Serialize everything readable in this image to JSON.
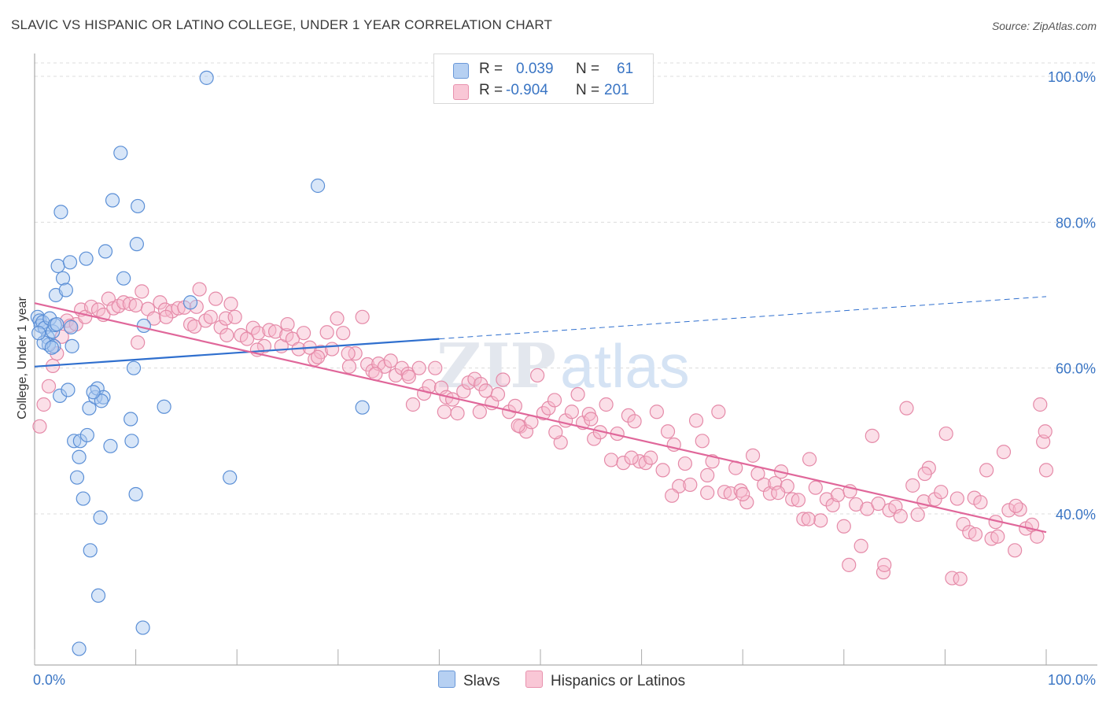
{
  "title": "SLAVIC VS HISPANIC OR LATINO COLLEGE, UNDER 1 YEAR CORRELATION CHART",
  "source": "Source: ZipAtlas.com",
  "watermark": {
    "part1": "ZIP",
    "part2": "atlas"
  },
  "legend": {
    "r_label": "R =",
    "n_label": "N =",
    "rows": [
      {
        "r": "0.039",
        "n": "61"
      },
      {
        "r": "-0.904",
        "n": "201"
      }
    ]
  },
  "colors": {
    "blue_fill": "#a9c8f0",
    "blue_stroke": "#5b8fd6",
    "blue_line": "#2f6fce",
    "pink_fill": "#f7b8cb",
    "pink_stroke": "#e58aa8",
    "pink_line": "#e0679a",
    "axis_label": "#3a75c4"
  },
  "chart_data": {
    "type": "scatter",
    "title": "SLAVIC VS HISPANIC OR LATINO COLLEGE, UNDER 1 YEAR CORRELATION CHART",
    "xlabel": "",
    "ylabel": "College, Under 1 year",
    "x_tick_labels": [
      "0.0%",
      "100.0%"
    ],
    "y_tick_labels": [
      "40.0%",
      "60.0%",
      "80.0%",
      "100.0%"
    ],
    "y_ticks": [
      40,
      60,
      80,
      100
    ],
    "xlim": [
      0,
      100
    ],
    "ylim": [
      19.5,
      102
    ],
    "grid": true,
    "legend_position": "bottom-center",
    "series": [
      {
        "name": "Slavs",
        "r": 0.039,
        "n": 61,
        "trend": {
          "x": [
            0,
            40
          ],
          "y": [
            60.2,
            64.0
          ],
          "dashed_to": [
            100,
            69.8
          ]
        },
        "points": [
          [
            0.3,
            67.0
          ],
          [
            0.5,
            66.5
          ],
          [
            0.6,
            65.8
          ],
          [
            0.8,
            66.3
          ],
          [
            1.0,
            65.5
          ],
          [
            1.3,
            64.2
          ],
          [
            1.4,
            63.2
          ],
          [
            1.5,
            66.8
          ],
          [
            1.8,
            65.0
          ],
          [
            1.9,
            63.0
          ],
          [
            2.0,
            65.9
          ],
          [
            2.1,
            70.0
          ],
          [
            2.3,
            74.0
          ],
          [
            2.5,
            56.2
          ],
          [
            2.6,
            81.4
          ],
          [
            2.8,
            72.3
          ],
          [
            3.1,
            70.7
          ],
          [
            3.3,
            57.0
          ],
          [
            3.5,
            74.5
          ],
          [
            3.6,
            65.6
          ],
          [
            3.7,
            63.0
          ],
          [
            3.9,
            50.0
          ],
          [
            4.2,
            45.0
          ],
          [
            4.4,
            47.8
          ],
          [
            4.5,
            50.0
          ],
          [
            4.8,
            42.1
          ],
          [
            5.1,
            75.0
          ],
          [
            5.2,
            50.8
          ],
          [
            5.4,
            54.5
          ],
          [
            5.5,
            35.0
          ],
          [
            6.0,
            56.0
          ],
          [
            6.2,
            57.2
          ],
          [
            6.3,
            28.8
          ],
          [
            6.5,
            39.5
          ],
          [
            6.8,
            56.0
          ],
          [
            7.0,
            76.0
          ],
          [
            7.5,
            49.3
          ],
          [
            7.7,
            83.0
          ],
          [
            8.5,
            89.5
          ],
          [
            8.8,
            72.3
          ],
          [
            9.5,
            53.0
          ],
          [
            9.6,
            50.0
          ],
          [
            9.8,
            60.0
          ],
          [
            10.0,
            42.7
          ],
          [
            10.1,
            77.0
          ],
          [
            10.2,
            82.2
          ],
          [
            10.7,
            24.4
          ],
          [
            10.8,
            65.8
          ],
          [
            12.8,
            54.7
          ],
          [
            15.4,
            69.0
          ],
          [
            17.0,
            99.8
          ],
          [
            19.3,
            45.0
          ],
          [
            28.0,
            85.0
          ],
          [
            32.4,
            54.6
          ],
          [
            4.4,
            21.5
          ],
          [
            0.9,
            63.5
          ],
          [
            1.7,
            62.8
          ],
          [
            2.2,
            66.0
          ],
          [
            0.4,
            64.8
          ],
          [
            6.6,
            55.5
          ],
          [
            5.8,
            56.7
          ]
        ]
      },
      {
        "name": "Hispanics or Latinos",
        "r": -0.904,
        "n": 201,
        "trend": {
          "x": [
            0,
            100
          ],
          "y": [
            68.9,
            37.5
          ]
        },
        "points": [
          [
            0.5,
            52.0
          ],
          [
            0.9,
            55.0
          ],
          [
            1.4,
            57.5
          ],
          [
            1.8,
            60.3
          ],
          [
            2.2,
            62.0
          ],
          [
            2.7,
            64.3
          ],
          [
            3.2,
            66.5
          ],
          [
            3.5,
            65.8
          ],
          [
            4.1,
            66.0
          ],
          [
            4.6,
            68.0
          ],
          [
            5.0,
            67.0
          ],
          [
            5.6,
            68.4
          ],
          [
            6.3,
            68.0
          ],
          [
            6.8,
            67.3
          ],
          [
            7.3,
            69.5
          ],
          [
            7.8,
            68.2
          ],
          [
            8.3,
            68.5
          ],
          [
            8.8,
            69.0
          ],
          [
            9.4,
            68.8
          ],
          [
            10.0,
            68.6
          ],
          [
            10.6,
            70.5
          ],
          [
            11.2,
            68.1
          ],
          [
            11.8,
            66.8
          ],
          [
            12.4,
            69.0
          ],
          [
            12.9,
            68.0
          ],
          [
            13.6,
            67.8
          ],
          [
            14.2,
            68.2
          ],
          [
            14.8,
            68.3
          ],
          [
            15.4,
            66.0
          ],
          [
            15.8,
            65.7
          ],
          [
            16.3,
            70.8
          ],
          [
            16.9,
            66.5
          ],
          [
            17.4,
            67.0
          ],
          [
            17.9,
            69.5
          ],
          [
            18.4,
            65.6
          ],
          [
            18.9,
            66.8
          ],
          [
            19.4,
            68.8
          ],
          [
            19.8,
            67.0
          ],
          [
            20.4,
            64.5
          ],
          [
            21.0,
            64.0
          ],
          [
            21.6,
            65.5
          ],
          [
            22.1,
            64.8
          ],
          [
            22.7,
            63.0
          ],
          [
            23.2,
            65.2
          ],
          [
            23.8,
            65.0
          ],
          [
            24.4,
            63.0
          ],
          [
            24.9,
            64.5
          ],
          [
            25.5,
            64.0
          ],
          [
            26.1,
            62.6
          ],
          [
            26.6,
            64.8
          ],
          [
            27.2,
            62.8
          ],
          [
            27.7,
            61.2
          ],
          [
            28.3,
            62.2
          ],
          [
            28.9,
            64.9
          ],
          [
            29.4,
            62.6
          ],
          [
            29.9,
            66.8
          ],
          [
            30.5,
            64.8
          ],
          [
            31.1,
            60.2
          ],
          [
            31.7,
            62.0
          ],
          [
            32.4,
            67.0
          ],
          [
            32.9,
            60.5
          ],
          [
            33.4,
            59.6
          ],
          [
            34.0,
            60.6
          ],
          [
            34.6,
            60.2
          ],
          [
            35.2,
            61.0
          ],
          [
            35.7,
            59.0
          ],
          [
            36.3,
            60.0
          ],
          [
            36.9,
            59.2
          ],
          [
            37.4,
            55.0
          ],
          [
            38.0,
            60.0
          ],
          [
            38.5,
            56.5
          ],
          [
            39.0,
            57.5
          ],
          [
            39.6,
            60.0
          ],
          [
            40.2,
            57.3
          ],
          [
            40.7,
            56.0
          ],
          [
            41.3,
            55.7
          ],
          [
            41.8,
            53.8
          ],
          [
            42.4,
            56.8
          ],
          [
            42.9,
            58.0
          ],
          [
            43.5,
            58.5
          ],
          [
            44.1,
            57.8
          ],
          [
            44.6,
            56.9
          ],
          [
            45.2,
            55.2
          ],
          [
            45.8,
            56.4
          ],
          [
            46.3,
            58.4
          ],
          [
            46.9,
            54.0
          ],
          [
            47.5,
            54.8
          ],
          [
            48.0,
            52.0
          ],
          [
            48.6,
            51.3
          ],
          [
            49.1,
            52.6
          ],
          [
            49.7,
            59.0
          ],
          [
            50.3,
            53.8
          ],
          [
            50.8,
            54.5
          ],
          [
            51.4,
            55.6
          ],
          [
            52.0,
            49.8
          ],
          [
            52.5,
            52.8
          ],
          [
            53.1,
            54.0
          ],
          [
            53.7,
            56.4
          ],
          [
            54.2,
            52.5
          ],
          [
            54.8,
            53.7
          ],
          [
            55.3,
            50.3
          ],
          [
            55.9,
            51.2
          ],
          [
            56.5,
            55.0
          ],
          [
            57.0,
            47.4
          ],
          [
            57.6,
            51.0
          ],
          [
            58.2,
            47.0
          ],
          [
            58.7,
            53.5
          ],
          [
            59.3,
            52.7
          ],
          [
            59.8,
            47.2
          ],
          [
            60.4,
            47.0
          ],
          [
            60.9,
            47.7
          ],
          [
            61.5,
            54.0
          ],
          [
            62.1,
            46.0
          ],
          [
            62.6,
            51.3
          ],
          [
            63.2,
            49.5
          ],
          [
            63.7,
            43.8
          ],
          [
            64.3,
            46.9
          ],
          [
            64.8,
            44.0
          ],
          [
            65.4,
            52.8
          ],
          [
            66.0,
            50.0
          ],
          [
            66.5,
            42.9
          ],
          [
            67.0,
            47.2
          ],
          [
            67.6,
            54.0
          ],
          [
            68.2,
            43.0
          ],
          [
            68.8,
            42.8
          ],
          [
            69.3,
            46.3
          ],
          [
            69.8,
            43.2
          ],
          [
            70.4,
            41.6
          ],
          [
            71.0,
            48.0
          ],
          [
            71.5,
            45.5
          ],
          [
            72.1,
            44.0
          ],
          [
            72.7,
            42.8
          ],
          [
            73.2,
            44.2
          ],
          [
            73.8,
            45.8
          ],
          [
            74.4,
            43.8
          ],
          [
            74.9,
            42.0
          ],
          [
            75.5,
            41.9
          ],
          [
            76.0,
            39.3
          ],
          [
            76.6,
            47.5
          ],
          [
            77.2,
            43.6
          ],
          [
            77.7,
            39.1
          ],
          [
            78.3,
            42.0
          ],
          [
            78.9,
            41.2
          ],
          [
            79.4,
            42.6
          ],
          [
            80.0,
            38.3
          ],
          [
            80.6,
            43.1
          ],
          [
            81.2,
            41.3
          ],
          [
            81.7,
            35.6
          ],
          [
            82.3,
            40.7
          ],
          [
            82.8,
            50.7
          ],
          [
            83.4,
            41.4
          ],
          [
            83.9,
            32.0
          ],
          [
            84.5,
            40.5
          ],
          [
            85.1,
            41.0
          ],
          [
            85.6,
            39.7
          ],
          [
            86.2,
            54.5
          ],
          [
            86.8,
            43.9
          ],
          [
            87.3,
            39.9
          ],
          [
            87.9,
            41.7
          ],
          [
            88.4,
            46.3
          ],
          [
            89.0,
            42.0
          ],
          [
            89.6,
            43.0
          ],
          [
            90.1,
            51.0
          ],
          [
            90.7,
            31.2
          ],
          [
            91.2,
            42.1
          ],
          [
            91.8,
            38.6
          ],
          [
            92.4,
            37.5
          ],
          [
            92.9,
            42.2
          ],
          [
            93.5,
            41.6
          ],
          [
            94.1,
            46.0
          ],
          [
            94.6,
            36.6
          ],
          [
            95.2,
            36.9
          ],
          [
            95.8,
            48.5
          ],
          [
            96.3,
            40.5
          ],
          [
            96.9,
            35.0
          ],
          [
            97.4,
            40.6
          ],
          [
            98.0,
            38.0
          ],
          [
            98.6,
            38.5
          ],
          [
            99.1,
            36.9
          ],
          [
            99.7,
            49.9
          ],
          [
            100.0,
            46.0
          ],
          [
            99.4,
            55.0
          ],
          [
            99.9,
            51.3
          ],
          [
            97.0,
            41.1
          ],
          [
            95.0,
            38.9
          ],
          [
            93.0,
            37.2
          ],
          [
            91.5,
            31.1
          ],
          [
            88.0,
            45.5
          ],
          [
            84.0,
            33.0
          ],
          [
            80.5,
            33.0
          ],
          [
            76.5,
            39.3
          ],
          [
            73.5,
            42.9
          ],
          [
            70.0,
            42.7
          ],
          [
            66.5,
            45.3
          ],
          [
            63.0,
            42.5
          ],
          [
            59.0,
            47.7
          ],
          [
            55.0,
            53.0
          ],
          [
            51.5,
            51.2
          ],
          [
            47.8,
            52.1
          ],
          [
            44.0,
            54.0
          ],
          [
            40.5,
            54.0
          ],
          [
            37.0,
            58.8
          ],
          [
            33.7,
            59.2
          ],
          [
            31.0,
            62.0
          ],
          [
            28.0,
            61.5
          ],
          [
            25.0,
            66.0
          ],
          [
            22.0,
            62.5
          ],
          [
            19.0,
            64.5
          ],
          [
            16.0,
            68.4
          ],
          [
            13.0,
            67.0
          ],
          [
            10.2,
            63.5
          ]
        ]
      }
    ]
  }
}
